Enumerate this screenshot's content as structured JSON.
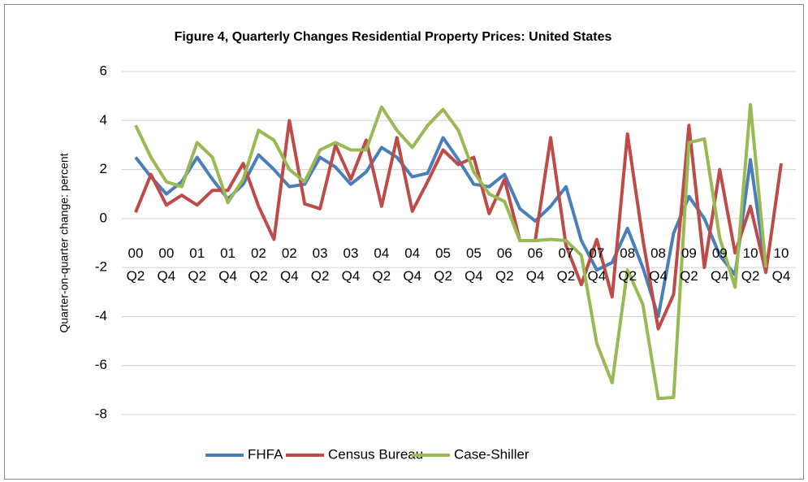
{
  "chart_data": {
    "type": "line",
    "title": "Figure 4, Quarterly Changes Residential Property Prices: United States",
    "ylabel": "Quarter-on-quarter change: percent",
    "categories": [
      "00 Q2",
      null,
      "00 Q4",
      null,
      "01 Q2",
      null,
      "01 Q4",
      null,
      "02 Q2",
      null,
      "02 Q4",
      null,
      "03 Q2",
      null,
      "03 Q4",
      null,
      "04 Q2",
      null,
      "04 Q4",
      null,
      "05 Q2",
      null,
      "05 Q4",
      null,
      "06 Q2",
      null,
      "06 Q4",
      null,
      "07 Q2",
      null,
      "07 Q4",
      null,
      "08 Q2",
      null,
      "08 Q4",
      null,
      "09 Q2",
      null,
      "09 Q4",
      null,
      "10 Q2",
      null,
      "10 Q4"
    ],
    "series": [
      {
        "name": "FHFA",
        "color": "#4a7ebb",
        "values": [
          2.5,
          1.7,
          1.0,
          1.5,
          2.5,
          1.6,
          0.8,
          1.4,
          2.6,
          2.0,
          1.3,
          1.4,
          2.5,
          2.1,
          1.4,
          1.9,
          2.9,
          2.5,
          1.7,
          1.85,
          3.3,
          2.4,
          1.4,
          1.3,
          1.8,
          0.4,
          -0.1,
          0.5,
          1.3,
          -0.9,
          -2.1,
          -1.8,
          -0.4,
          -2.0,
          -4.0,
          -0.6,
          0.9,
          0.0,
          -1.5,
          -2.3,
          2.4,
          -2.1,
          null
        ]
      },
      {
        "name": "Census Bureau",
        "color": "#be4b48",
        "values": [
          0.25,
          1.8,
          0.55,
          0.95,
          0.55,
          1.15,
          1.15,
          2.25,
          0.5,
          -0.85,
          4.0,
          0.6,
          0.4,
          3.0,
          1.6,
          3.2,
          0.5,
          3.3,
          0.3,
          1.5,
          2.8,
          2.2,
          2.5,
          0.2,
          1.6,
          -0.9,
          -0.9,
          3.3,
          -1.1,
          -2.7,
          -0.85,
          -3.2,
          3.45,
          -0.85,
          -4.5,
          -3.1,
          3.8,
          -2.0,
          2.0,
          -1.4,
          0.5,
          -2.2,
          2.25
        ]
      },
      {
        "name": "Case-Shiller",
        "color": "#98b954",
        "values": [
          3.8,
          2.5,
          1.5,
          1.3,
          3.1,
          2.5,
          0.65,
          1.6,
          3.6,
          3.2,
          2.0,
          1.5,
          2.8,
          3.1,
          2.8,
          2.8,
          4.55,
          3.6,
          2.9,
          3.8,
          4.45,
          3.6,
          1.9,
          1.0,
          0.7,
          -0.9,
          -0.9,
          -0.85,
          -0.9,
          -1.5,
          -5.1,
          -6.7,
          -2.1,
          -3.5,
          -7.35,
          -7.3,
          3.1,
          3.25,
          -0.8,
          -2.8,
          4.65,
          -2.0,
          null
        ]
      }
    ],
    "ylim": [
      -8,
      6
    ],
    "yticks": [
      -8,
      -6,
      -4,
      -2,
      0,
      2,
      4,
      6
    ],
    "grid": true,
    "legend": "bottom"
  }
}
